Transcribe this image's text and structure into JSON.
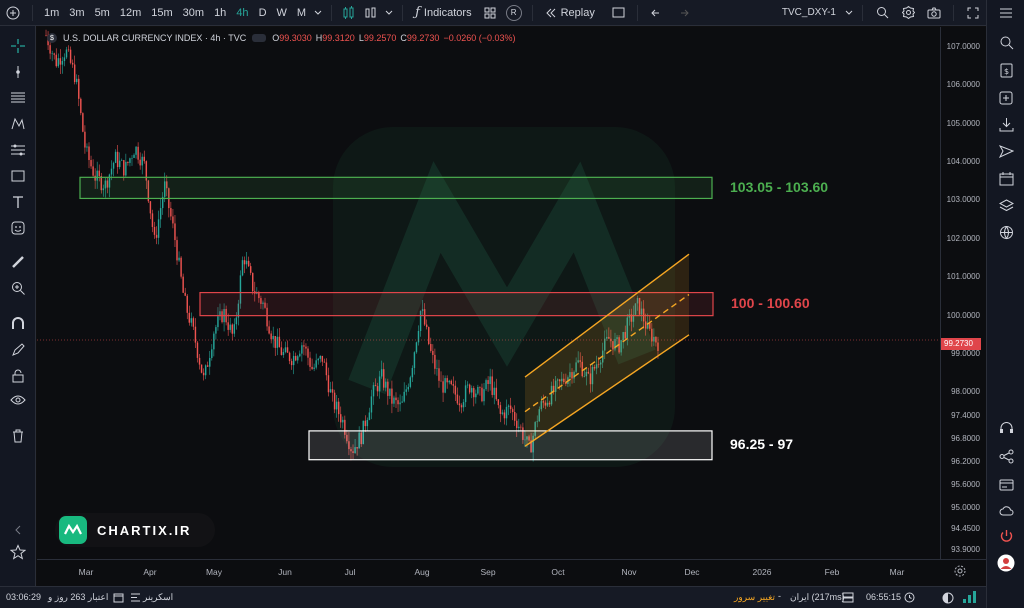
{
  "toolbar": {
    "timeframes": [
      "1m",
      "3m",
      "5m",
      "12m",
      "15m",
      "30m",
      "1h",
      "4h",
      "D",
      "W",
      "M"
    ],
    "active_timeframe": "4h",
    "indicators_label": "Indicators",
    "replay_label": "Replay",
    "symbol_label": "TVC_DXY-1",
    "r_badge": "R"
  },
  "legend": {
    "title": "U.S. DOLLAR CURRENCY INDEX · 4h · TVC",
    "o_label": "O",
    "o_value": "99.3030",
    "h_label": "H",
    "h_value": "99.3120",
    "l_label": "L",
    "l_value": "99.2570",
    "c_label": "C",
    "c_value": "99.2730",
    "change": "−0.0260 (−0.03%)"
  },
  "zones": [
    {
      "label": "103.05 - 103.60",
      "low": 103.05,
      "high": 103.6,
      "color": "#4caf50"
    },
    {
      "label": "100 - 100.60",
      "low": 100.0,
      "high": 100.6,
      "color": "#e0454a"
    },
    {
      "label": "96.25 - 97",
      "low": 96.25,
      "high": 97.0,
      "color": "#ffffff"
    }
  ],
  "price_axis": {
    "labels": [
      "107.0000",
      "106.0000",
      "105.0000",
      "104.0000",
      "103.0000",
      "102.0000",
      "101.0000",
      "100.0000",
      "99.0000",
      "98.0000",
      "97.4000",
      "96.8000",
      "96.2000",
      "95.6000",
      "95.0000",
      "94.4500",
      "93.9000"
    ],
    "current_price": "99.2730"
  },
  "time_axis": {
    "labels": [
      "Mar",
      "Apr",
      "May",
      "Jun",
      "Jul",
      "Aug",
      "Sep",
      "Oct",
      "Nov",
      "Dec",
      "2026",
      "Feb",
      "Mar"
    ]
  },
  "logo_text": "CHARTIX.IR",
  "bottom": {
    "time_left": "03:06:29",
    "credit_label": "اعتبار 263 روز و",
    "screener_label": "اسکرینر",
    "change_server_label": "تغییر سرور",
    "server_label": "ایران (217ms)",
    "time_right": "06:55:15"
  },
  "colors": {
    "up": "#26a69a",
    "down": "#ef5350",
    "channel": "#f5a623",
    "accent": "#26a69a"
  },
  "chart_data": {
    "type": "candlestick",
    "series": [
      {
        "values": [
          107.3,
          106.6,
          106.9,
          106.2,
          104.3,
          103.6,
          103.4,
          104.1,
          103.8,
          104.4,
          103.9,
          101.9,
          103.4,
          102.1,
          100.4,
          99.5,
          98.3,
          99.6,
          100.1,
          99.4,
          101.6,
          100.7,
          100.3,
          99.4,
          99.0,
          98.9,
          99.3,
          98.6,
          98.9,
          97.8,
          97.3,
          96.5,
          96.9,
          97.9,
          98.4,
          97.8,
          97.6,
          98.6,
          100.2,
          99.0,
          98.2,
          98.1,
          97.8,
          98.2,
          97.9,
          98.3,
          97.4,
          97.6,
          97.1,
          96.5,
          97.6,
          97.9,
          98.2,
          98.5,
          98.8,
          98.3,
          98.9,
          99.4,
          99.2,
          99.8,
          100.3,
          99.6,
          99.3
        ]
      }
    ],
    "x_range": [
      "Feb 2025",
      "Nov 2025"
    ],
    "ylim": [
      93.9,
      107.2
    ],
    "channel": {
      "from": "Sep 2025",
      "to": "Nov 2025",
      "lower_start": 96.6,
      "lower_end": 99.5,
      "upper_start": 98.4,
      "upper_end": 101.6
    }
  }
}
